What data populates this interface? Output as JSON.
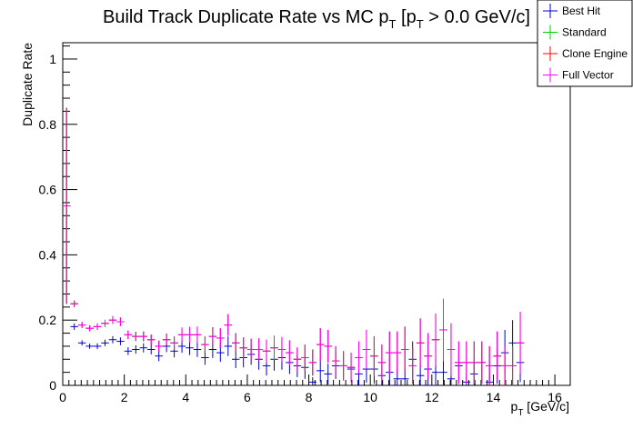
{
  "chart_data": {
    "type": "scatter",
    "title": "Build Track Duplicate Rate vs MC p",
    "title_sub1": "T",
    "title_mid": " [p",
    "title_sub2": "T",
    "title_end": " > 0.0 GeV/c]",
    "xlabel": "p",
    "xlabel_sub": "T",
    "xlabel_unit": " [GeV/c]",
    "ylabel": "Duplicate Rate",
    "xlim": [
      0,
      16.5
    ],
    "ylim": [
      0,
      1.05
    ],
    "bin_width": 0.25,
    "x_ticks": [
      "0",
      "2",
      "4",
      "6",
      "8",
      "10",
      "12",
      "14",
      "16"
    ],
    "y_ticks": [
      "0",
      "0.2",
      "0.4",
      "0.6",
      "0.8",
      "1"
    ],
    "legend_position": "top-right",
    "legend": [
      "Best Hit",
      "Standard",
      "Clone Engine",
      "Full Vector"
    ],
    "colors": {
      "Best Hit": "#0000cc",
      "Standard": "#00cc00",
      "Clone Engine": "#ff0000",
      "Full Vector": "#ff00ff"
    },
    "series": [
      {
        "name": "Best Hit",
        "x": [
          0.125,
          0.375,
          0.625,
          0.875,
          1.125,
          1.375,
          1.625,
          1.875,
          2.125,
          2.375,
          2.625,
          2.875,
          3.125,
          3.375,
          3.625,
          3.875,
          4.125,
          4.375,
          4.625,
          4.875,
          5.125,
          5.375,
          5.625,
          5.875,
          6.125,
          6.375,
          6.625,
          6.875,
          7.125,
          7.375,
          7.625,
          7.875,
          8.125,
          8.375,
          8.625,
          8.875,
          9.125,
          9.375,
          9.625,
          9.875,
          10.125,
          10.375,
          10.625,
          10.875,
          11.125,
          11.375,
          11.625,
          11.875,
          12.125,
          12.375,
          12.625,
          12.875,
          13.125,
          13.375,
          13.625,
          13.875,
          14.125,
          14.375,
          14.625,
          14.875
        ],
        "y": [
          0.55,
          0.18,
          0.13,
          0.12,
          0.12,
          0.13,
          0.14,
          0.135,
          0.105,
          0.11,
          0.115,
          0.11,
          0.09,
          0.12,
          0.105,
          0.12,
          0.115,
          0.11,
          0.085,
          0.11,
          0.1,
          0.12,
          0.08,
          0.085,
          0.095,
          0.08,
          0.06,
          0.08,
          0.085,
          0.07,
          0.06,
          0.055,
          0.01,
          0.045,
          0.035,
          0.06,
          0.06,
          0.05,
          0.035,
          0.05,
          0.05,
          0.03,
          0.04,
          0.02,
          0.02,
          0.08,
          0.03,
          0.05,
          0.04,
          0.04,
          0.02,
          0.06,
          0.01,
          0.035,
          0.07,
          0.01,
          0.06,
          0.1,
          0.13,
          0.07
        ],
        "err": [
          0.3,
          0.01,
          0.008,
          0.008,
          0.009,
          0.01,
          0.011,
          0.012,
          0.012,
          0.013,
          0.014,
          0.015,
          0.016,
          0.018,
          0.019,
          0.02,
          0.022,
          0.023,
          0.022,
          0.026,
          0.028,
          0.03,
          0.027,
          0.03,
          0.032,
          0.032,
          0.03,
          0.035,
          0.037,
          0.035,
          0.035,
          0.035,
          0.015,
          0.035,
          0.032,
          0.04,
          0.042,
          0.04,
          0.035,
          0.042,
          0.045,
          0.035,
          0.04,
          0.03,
          0.03,
          0.055,
          0.035,
          0.05,
          0.045,
          0.045,
          0.03,
          0.055,
          0.02,
          0.04,
          0.06,
          0.02,
          0.055,
          0.07,
          0.07,
          0.06
        ]
      },
      {
        "name": "Standard",
        "x": [
          0.125,
          0.375,
          0.625,
          0.875,
          1.125,
          1.375,
          1.625,
          1.875,
          2.125,
          2.375,
          2.625,
          2.875,
          3.125,
          3.375,
          3.625,
          3.875,
          4.125,
          4.375,
          4.625,
          4.875,
          5.125,
          5.375,
          5.625,
          5.875,
          6.125,
          6.375,
          6.625,
          6.875,
          7.125,
          7.375,
          7.625,
          7.875,
          8.125,
          8.375,
          8.625,
          8.875,
          9.125,
          9.375,
          9.625,
          9.875,
          10.125,
          10.375,
          10.625,
          10.875,
          11.125,
          11.375,
          11.625,
          11.875,
          12.125,
          12.375,
          12.625,
          12.875,
          13.125,
          13.375,
          13.625,
          13.875,
          14.125,
          14.375,
          14.625,
          14.875
        ],
        "y": [
          0.55,
          0.25,
          0.185,
          0.175,
          0.18,
          0.19,
          0.2,
          0.195,
          0.155,
          0.15,
          0.15,
          0.14,
          0.12,
          0.14,
          0.13,
          0.155,
          0.155,
          0.155,
          0.125,
          0.15,
          0.145,
          0.185,
          0.13,
          0.115,
          0.11,
          0.11,
          0.105,
          0.115,
          0.11,
          0.1,
          0.08,
          0.085,
          0.07,
          0.125,
          0.12,
          0.075,
          0.06,
          0.055,
          0.085,
          0.11,
          0.09,
          0.07,
          0.1,
          0.1,
          0.11,
          0.06,
          0.13,
          0.09,
          0.14,
          0.17,
          0.11,
          0.07,
          0.07,
          0.07,
          0.07,
          0.06,
          0.09,
          0.06,
          0.06,
          0.13
        ],
        "err": [
          0.3,
          0.01,
          0.009,
          0.009,
          0.01,
          0.011,
          0.012,
          0.013,
          0.013,
          0.014,
          0.015,
          0.016,
          0.017,
          0.019,
          0.02,
          0.022,
          0.024,
          0.025,
          0.025,
          0.028,
          0.03,
          0.033,
          0.03,
          0.032,
          0.033,
          0.034,
          0.035,
          0.037,
          0.038,
          0.038,
          0.036,
          0.04,
          0.04,
          0.05,
          0.05,
          0.045,
          0.045,
          0.045,
          0.05,
          0.06,
          0.06,
          0.055,
          0.065,
          0.065,
          0.07,
          0.055,
          0.075,
          0.07,
          0.08,
          0.095,
          0.08,
          0.065,
          0.065,
          0.065,
          0.065,
          0.06,
          0.075,
          0.06,
          0.06,
          0.095
        ]
      },
      {
        "name": "Clone Engine",
        "x": [
          0.125,
          0.375,
          0.625,
          0.875,
          1.125,
          1.375,
          1.625,
          1.875,
          2.125,
          2.375,
          2.625,
          2.875,
          3.125,
          3.375,
          3.625,
          3.875,
          4.125,
          4.375,
          4.625,
          4.875,
          5.125,
          5.375,
          5.625,
          5.875,
          6.125,
          6.375,
          6.625,
          6.875,
          7.125,
          7.375,
          7.625,
          7.875,
          8.125,
          8.375,
          8.625,
          8.875,
          9.125,
          9.375,
          9.625,
          9.875,
          10.125,
          10.375,
          10.625,
          10.875,
          11.125,
          11.375,
          11.625,
          11.875,
          12.125,
          12.375,
          12.625,
          12.875,
          13.125,
          13.375,
          13.625,
          13.875,
          14.125,
          14.375,
          14.625,
          14.875
        ],
        "y": [
          0.55,
          0.25,
          0.185,
          0.175,
          0.18,
          0.19,
          0.2,
          0.195,
          0.155,
          0.15,
          0.15,
          0.14,
          0.12,
          0.14,
          0.13,
          0.155,
          0.155,
          0.155,
          0.125,
          0.15,
          0.145,
          0.185,
          0.13,
          0.115,
          0.11,
          0.11,
          0.105,
          0.115,
          0.11,
          0.1,
          0.08,
          0.085,
          0.07,
          0.125,
          0.12,
          0.075,
          0.06,
          0.055,
          0.085,
          0.11,
          0.09,
          0.07,
          0.1,
          0.1,
          0.11,
          0.06,
          0.13,
          0.09,
          0.14,
          0.17,
          0.11,
          0.07,
          0.07,
          0.07,
          0.07,
          0.06,
          0.09,
          0.06,
          0.06,
          0.13
        ],
        "err": [
          0.3,
          0.01,
          0.009,
          0.009,
          0.01,
          0.011,
          0.012,
          0.013,
          0.013,
          0.014,
          0.015,
          0.016,
          0.017,
          0.019,
          0.02,
          0.022,
          0.024,
          0.025,
          0.025,
          0.028,
          0.03,
          0.033,
          0.03,
          0.032,
          0.033,
          0.034,
          0.035,
          0.037,
          0.038,
          0.038,
          0.036,
          0.04,
          0.04,
          0.05,
          0.05,
          0.045,
          0.045,
          0.045,
          0.05,
          0.06,
          0.06,
          0.055,
          0.065,
          0.065,
          0.07,
          0.055,
          0.075,
          0.07,
          0.08,
          0.095,
          0.08,
          0.065,
          0.065,
          0.065,
          0.065,
          0.06,
          0.075,
          0.06,
          0.06,
          0.095
        ]
      },
      {
        "name": "Full Vector",
        "x": [
          0.125,
          0.375,
          0.625,
          0.875,
          1.125,
          1.375,
          1.625,
          1.875,
          2.125,
          2.375,
          2.625,
          2.875,
          3.125,
          3.375,
          3.625,
          3.875,
          4.125,
          4.375,
          4.625,
          4.875,
          5.125,
          5.375,
          5.625,
          5.875,
          6.125,
          6.375,
          6.625,
          6.875,
          7.125,
          7.375,
          7.625,
          7.875,
          8.125,
          8.375,
          8.625,
          8.875,
          9.125,
          9.375,
          9.625,
          9.875,
          10.125,
          10.375,
          10.625,
          10.875,
          11.125,
          11.375,
          11.625,
          11.875,
          12.125,
          12.375,
          12.625,
          12.875,
          13.125,
          13.375,
          13.625,
          13.875,
          14.125,
          14.375,
          14.625,
          14.875
        ],
        "y": [
          0.55,
          0.25,
          0.185,
          0.175,
          0.18,
          0.19,
          0.2,
          0.195,
          0.155,
          0.15,
          0.15,
          0.14,
          0.12,
          0.14,
          0.13,
          0.155,
          0.155,
          0.155,
          0.125,
          0.15,
          0.145,
          0.185,
          0.13,
          0.115,
          0.11,
          0.11,
          0.105,
          0.115,
          0.11,
          0.1,
          0.08,
          0.085,
          0.07,
          0.125,
          0.12,
          0.075,
          0.06,
          0.055,
          0.085,
          0.11,
          0.09,
          0.07,
          0.1,
          0.1,
          0.11,
          0.06,
          0.13,
          0.09,
          0.14,
          0.17,
          0.11,
          0.07,
          0.07,
          0.07,
          0.07,
          0.06,
          0.09,
          0.06,
          0.06,
          0.13
        ],
        "err": [
          0.3,
          0.01,
          0.009,
          0.009,
          0.01,
          0.011,
          0.012,
          0.013,
          0.013,
          0.014,
          0.015,
          0.016,
          0.017,
          0.019,
          0.02,
          0.022,
          0.024,
          0.025,
          0.025,
          0.028,
          0.03,
          0.033,
          0.03,
          0.032,
          0.033,
          0.034,
          0.035,
          0.037,
          0.038,
          0.038,
          0.036,
          0.04,
          0.04,
          0.05,
          0.05,
          0.045,
          0.045,
          0.045,
          0.05,
          0.06,
          0.06,
          0.055,
          0.065,
          0.065,
          0.07,
          0.055,
          0.075,
          0.07,
          0.08,
          0.095,
          0.08,
          0.065,
          0.065,
          0.065,
          0.065,
          0.06,
          0.075,
          0.06,
          0.06,
          0.095
        ]
      }
    ]
  }
}
